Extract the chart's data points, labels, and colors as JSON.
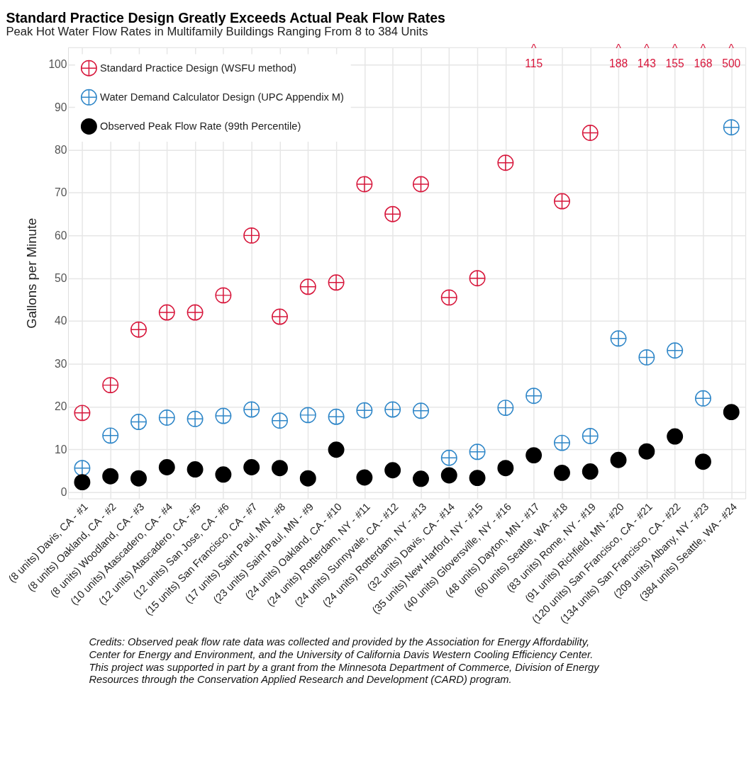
{
  "chart_data": {
    "type": "scatter",
    "title": "Standard Practice Design Greatly Exceeds Actual Peak Flow Rates",
    "subtitle": "Peak Hot Water Flow Rates in Multifamily Buildings Ranging From 8 to 384 Units",
    "ylabel": "Gallons per Minute",
    "categories": [
      "(8 units) Davis, CA - #1",
      "(8 units) Oakland, CA - #2",
      "(8 units) Woodland, CA - #3",
      "(10 units) Atascadero, CA - #4",
      "(12 units) Atascadero, CA - #5",
      "(12 units) San Jose, CA - #6",
      "(15 units) San Francisco, CA - #7",
      "(17 units) Saint Paul, MN - #8",
      "(23 units) Saint Paul, MN - #9",
      "(24 units) Oakland, CA - #10",
      "(24 units) Rotterdam, NY - #11",
      "(24 units) Sunnyvale, CA - #12",
      "(24 units) Rotterdam, NY - #13",
      "(32 units) Davis, CA - #14",
      "(35 units) New Harford, NY - #15",
      "(40 units) Gloversville, NY - #16",
      "(48 units) Dayton, MN - #17",
      "(60 units) Seattle, WA - #18",
      "(83 units) Rome, NY - #19",
      "(91 units) Richfield, MN - #20",
      "(120 units) San Francisco, CA - #21",
      "(134 units) San Francisco, CA - #22",
      "(209 units) Albany, NY - #23",
      "(384 units) Seattle, WA - #24"
    ],
    "series": [
      {
        "name": "Standard Practice Design (WSFU method)",
        "color": "#d7153a",
        "marker": "cross",
        "values": [
          18.5,
          25,
          38,
          42,
          42,
          46,
          60,
          41,
          48,
          49,
          72,
          65,
          72,
          45.5,
          50,
          77,
          null,
          68,
          84,
          null,
          null,
          null,
          null,
          null
        ]
      },
      {
        "name": "Water Demand Calculator Design (UPC Appendix M)",
        "color": "#2e86c8",
        "marker": "cross",
        "values": [
          5.6,
          13.2,
          16.4,
          17.4,
          17.1,
          17.8,
          19.3,
          16.7,
          18.0,
          17.6,
          19.1,
          19.3,
          19.0,
          8.0,
          9.4,
          19.7,
          22.5,
          11.5,
          13.1,
          35.9,
          31.5,
          33.1,
          21.9,
          85.3
        ]
      },
      {
        "name": "Observed Peak Flow Rate (99th Percentile)",
        "color": "#000000",
        "marker": "circle",
        "values": [
          2.3,
          3.7,
          3.2,
          5.8,
          5.3,
          4.1,
          5.8,
          5.6,
          3.2,
          9.9,
          3.4,
          5.1,
          3.1,
          3.9,
          3.3,
          5.6,
          8.6,
          4.5,
          4.8,
          7.5,
          9.5,
          13.0,
          7.1,
          18.7
        ]
      }
    ],
    "ylim": [
      -1.5,
      104
    ],
    "yticks": [
      0,
      10,
      20,
      30,
      40,
      50,
      60,
      70,
      80,
      90,
      100
    ],
    "grid": true,
    "legend": "top left",
    "annotations": [
      "^\n115",
      "^\n188",
      "^\n143",
      "^\n155",
      "^\n168",
      "^\n500",
      "Credits: Observed peak flow rate data was collected and provided by the Association for Energy Affordability, Center for Energy and Environment, and the University of California Davis Western Cooling Efficiency Center. This project was supported in part by a grant from the Minnesota Department of Commerce, Division of Energy Resources through the Conservation Applied Research and Development (CARD) program."
    ]
  }
}
